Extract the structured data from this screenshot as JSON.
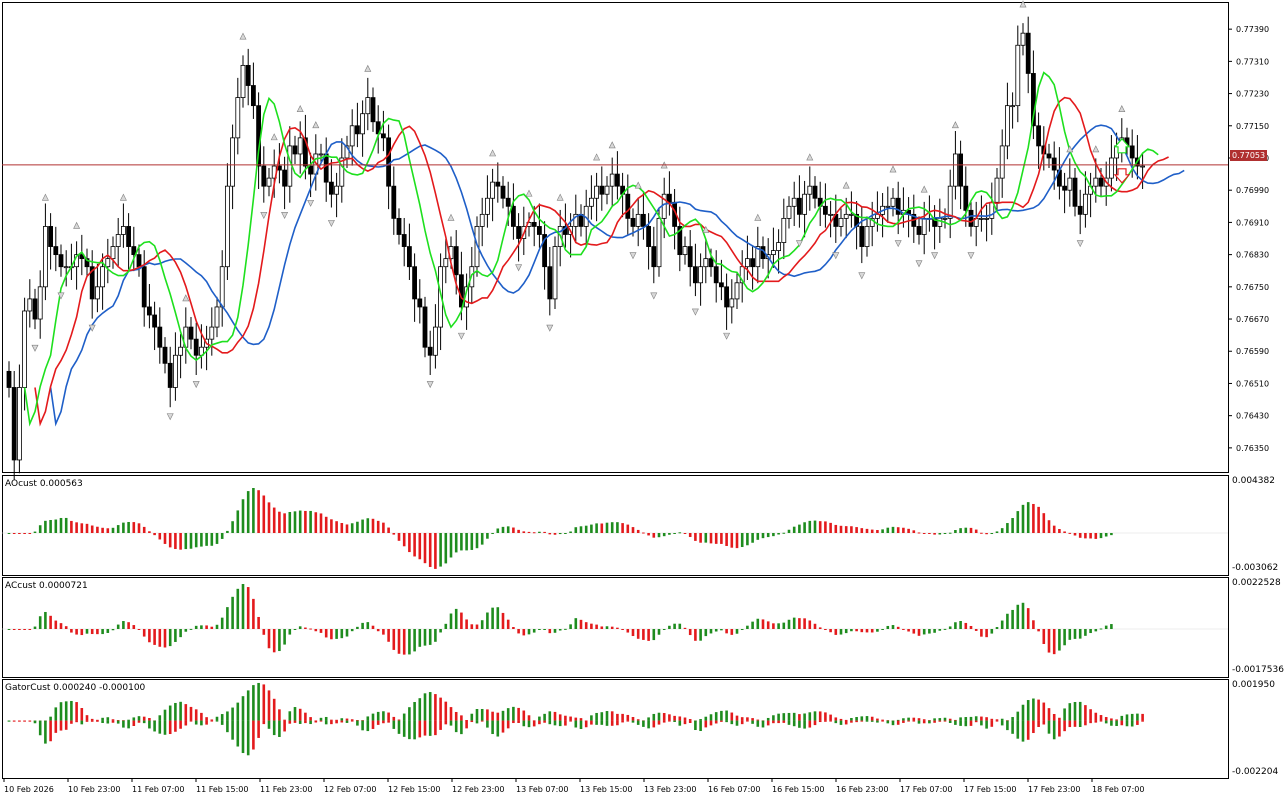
{
  "colors": {
    "background": "#ffffff",
    "candle": "#000000",
    "jaw_line": "#1f5fc8",
    "teeth_line": "#e31a1c",
    "lips_line": "#1ee01e",
    "bar_up": "#1e8c1e",
    "bar_down": "#e31a1c",
    "price_line": "#b03030",
    "fractal": "#808080"
  },
  "main_panel": {
    "current_price": "0.77053",
    "price_axis": [
      "0.77390",
      "0.77310",
      "0.77230",
      "0.77150",
      "0.77070",
      "0.76990",
      "0.76910",
      "0.76830",
      "0.76750",
      "0.76670",
      "0.76590",
      "0.76510",
      "0.76430",
      "0.76350"
    ],
    "arrows": [
      {
        "name": "buy-signal-arrow",
        "direction": "up"
      },
      {
        "name": "sell-signal-arrow",
        "direction": "down"
      }
    ]
  },
  "ao_panel": {
    "label": "AOcust 0.000563",
    "scale_top": "0.004382",
    "scale_bottom": "-0.003062"
  },
  "ac_panel": {
    "label": "ACcust 0.0000721",
    "scale_top": "0.0022528",
    "scale_bottom": "-0.0017536"
  },
  "gator_panel": {
    "label": "GatorCust 0.000240 -0.000100",
    "scale_top": "0.001950",
    "scale_bottom": "-0.002204"
  },
  "time_axis": [
    "10 Feb 2026",
    "10 Feb 23:00",
    "11 Feb 07:00",
    "11 Feb 15:00",
    "11 Feb 23:00",
    "12 Feb 07:00",
    "12 Feb 15:00",
    "12 Feb 23:00",
    "13 Feb 07:00",
    "13 Feb 15:00",
    "13 Feb 23:00",
    "16 Feb 07:00",
    "16 Feb 15:00",
    "16 Feb 23:00",
    "17 Feb 07:00",
    "17 Feb 15:00",
    "17 Feb 23:00",
    "18 Feb 07:00"
  ],
  "chart_data": {
    "type": "candlestick",
    "instrument_price_range": [
      0.763,
      0.7745
    ],
    "candles_close": [
      0.765,
      0.7632,
      0.765,
      0.7669,
      0.7672,
      0.7667,
      0.7675,
      0.769,
      0.7685,
      0.7683,
      0.768,
      0.768,
      0.768,
      0.7683,
      0.7682,
      0.768,
      0.7672,
      0.7675,
      0.768,
      0.7682,
      0.7685,
      0.7688,
      0.769,
      0.7685,
      0.7683,
      0.768,
      0.767,
      0.7668,
      0.7665,
      0.766,
      0.7656,
      0.765,
      0.7658,
      0.766,
      0.7665,
      0.7662,
      0.7658,
      0.766,
      0.7662,
      0.7665,
      0.767,
      0.768,
      0.77,
      0.7712,
      0.7722,
      0.773,
      0.7725,
      0.772,
      0.7705,
      0.77,
      0.7702,
      0.7705,
      0.7704,
      0.77,
      0.771,
      0.7708,
      0.7712,
      0.7705,
      0.7703,
      0.7708,
      0.7708,
      0.7701,
      0.7698,
      0.77,
      0.7707,
      0.771,
      0.7715,
      0.7713,
      0.7718,
      0.7722,
      0.7716,
      0.7713,
      0.7712,
      0.77,
      0.7692,
      0.7688,
      0.7685,
      0.768,
      0.7672,
      0.767,
      0.766,
      0.7658,
      0.7665,
      0.768,
      0.7682,
      0.7685,
      0.7678,
      0.767,
      0.7675,
      0.768,
      0.769,
      0.7693,
      0.7697,
      0.7701,
      0.77,
      0.7697,
      0.7695,
      0.769,
      0.7687,
      0.769,
      0.7691,
      0.769,
      0.7688,
      0.768,
      0.7672,
      0.7685,
      0.769,
      0.7688,
      0.769,
      0.7693,
      0.769,
      0.7695,
      0.7697,
      0.77,
      0.7698,
      0.77,
      0.7703,
      0.77,
      0.7698,
      0.7692,
      0.769,
      0.7693,
      0.769,
      0.7685,
      0.768,
      0.7692,
      0.7698,
      0.7696,
      0.769,
      0.7683,
      0.7685,
      0.768,
      0.7676,
      0.768,
      0.7682,
      0.768,
      0.7676,
      0.7675,
      0.767,
      0.7672,
      0.7676,
      0.768,
      0.7682,
      0.768,
      0.7685,
      0.7682,
      0.7683,
      0.7684,
      0.7686,
      0.7692,
      0.7695,
      0.7697,
      0.7693,
      0.7698,
      0.77,
      0.7697,
      0.7695,
      0.7693,
      0.7693,
      0.769,
      0.7692,
      0.7693,
      0.7693,
      0.769,
      0.7685,
      0.769,
      0.7692,
      0.7693,
      0.7695,
      0.7695,
      0.7697,
      0.7693,
      0.7694,
      0.7693,
      0.769,
      0.7688,
      0.7692,
      0.7692,
      0.769,
      0.7692,
      0.7692,
      0.77,
      0.7708,
      0.77,
      0.7694,
      0.769,
      0.7692,
      0.7692,
      0.7692,
      0.7696,
      0.7702,
      0.771,
      0.772,
      0.772,
      0.7735,
      0.7738,
      0.7728,
      0.7715,
      0.771,
      0.7708,
      0.7707,
      0.7704,
      0.77,
      0.7699,
      0.7702,
      0.7695,
      0.7693,
      0.7698,
      0.77,
      0.7702,
      0.77,
      0.7702,
      0.7707,
      0.771,
      0.7712,
      0.771,
      0.7707,
      0.7705,
      0.7705
    ]
  }
}
